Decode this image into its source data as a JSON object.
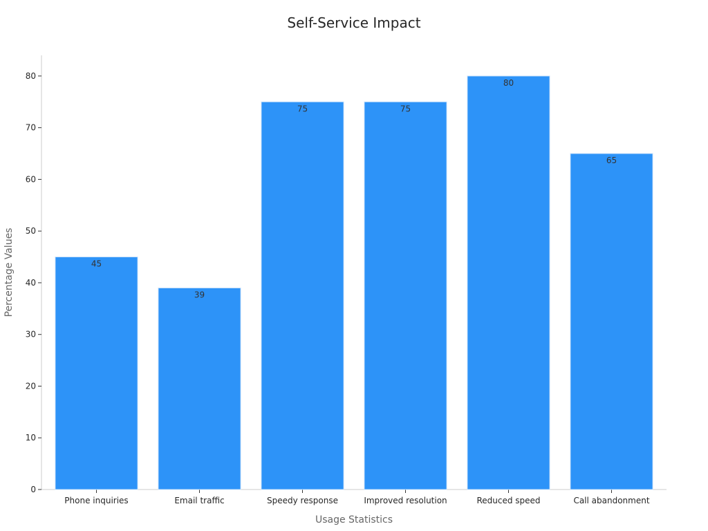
{
  "chart_data": {
    "type": "bar",
    "title": "Self-Service Impact",
    "xlabel": "Usage Statistics",
    "ylabel": "Percentage Values",
    "categories": [
      "Phone inquiries",
      "Email traffic",
      "Speedy response",
      "Improved resolution",
      "Reduced speed",
      "Call abandonment"
    ],
    "values": [
      45,
      39,
      75,
      75,
      80,
      65
    ],
    "ylim": [
      0,
      84
    ],
    "yticks": [
      0,
      10,
      20,
      30,
      40,
      50,
      60,
      70,
      80
    ],
    "grid": false,
    "bar_color": "#2d93f8",
    "bar_edge_color": "#cfe4fb"
  }
}
